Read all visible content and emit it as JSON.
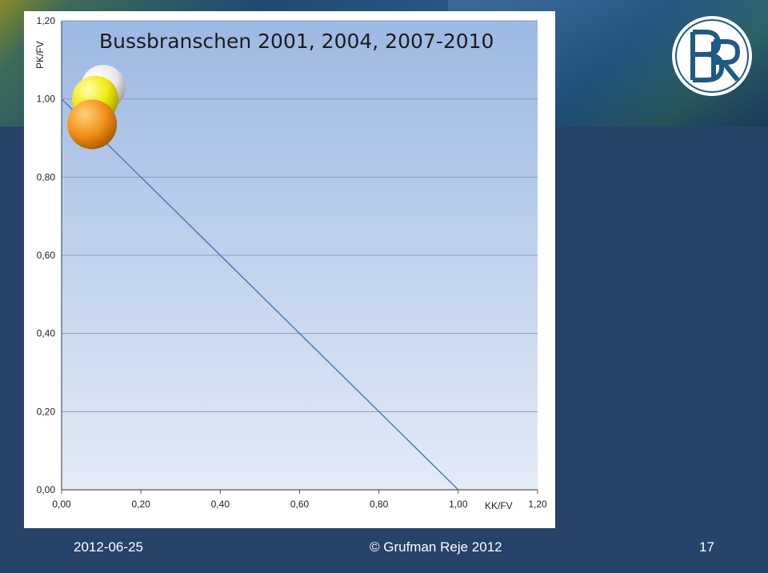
{
  "footer": {
    "date": "2012-06-25",
    "copyright": "© Grufman Reje 2012",
    "page_number": "17"
  },
  "logo": {
    "text": "BR"
  },
  "colors": {
    "slide_background": "#27436a",
    "plot_gradient_top": "#9db8e3",
    "plot_gradient_bottom": "#e4ecf7",
    "line": "#4a7bc0",
    "bubble_white": "#f2f2f2",
    "bubble_yellow": "#f5f020",
    "bubble_orange": "#f59a1c"
  },
  "chart_data": {
    "type": "scatter",
    "title": "Bussbranschen 2001, 2004, 2007-2010",
    "xlabel": "KK/FV",
    "ylabel": "PK/FV",
    "xlim": [
      0,
      1.2
    ],
    "ylim": [
      0,
      1.2
    ],
    "x_ticks": [
      "0,00",
      "0,20",
      "0,40",
      "0,60",
      "0,80",
      "1,00",
      "1,20"
    ],
    "y_ticks": [
      "0,00",
      "0,20",
      "0,40",
      "0,60",
      "0,80",
      "1,00",
      "1,20"
    ],
    "grid": "horizontal",
    "reference_line": {
      "from": [
        0,
        1
      ],
      "to": [
        1,
        0
      ]
    },
    "bubbles": [
      {
        "x": 0.105,
        "y": 1.03,
        "size": 0.5,
        "color": "#f2f2f2"
      },
      {
        "x": 0.085,
        "y": 1.0,
        "size": 0.55,
        "color": "#f5f020"
      },
      {
        "x": 0.077,
        "y": 0.935,
        "size": 0.65,
        "color": "#f59a1c"
      }
    ]
  }
}
